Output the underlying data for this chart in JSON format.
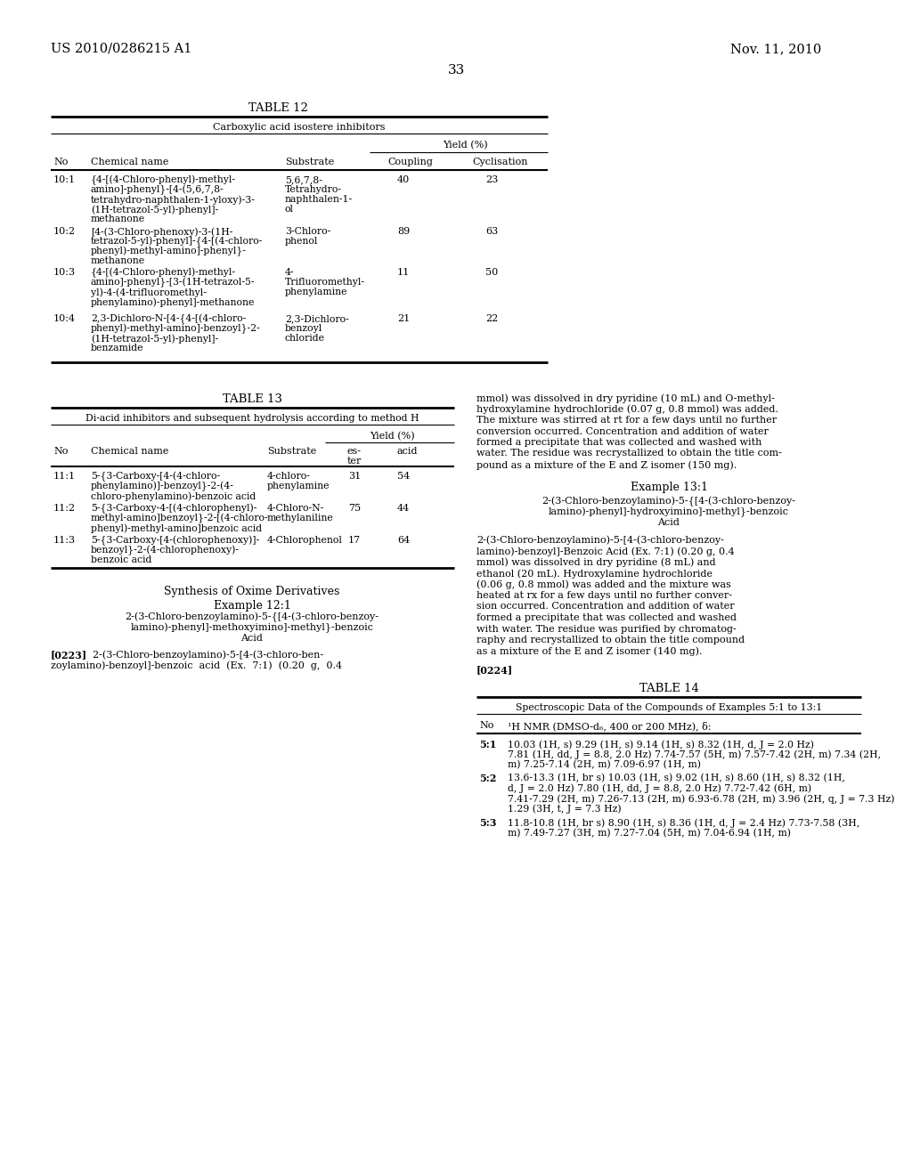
{
  "page_number": "33",
  "patent_left": "US 2010/0286215 A1",
  "patent_right": "Nov. 11, 2010",
  "bg_color": "#ffffff",
  "table12": {
    "title": "TABLE 12",
    "subtitle": "Carboxylic acid isostere inhibitors",
    "yield_header": "Yield (%)",
    "rows": [
      {
        "no": "10:1",
        "name": "{4-[(4-Chloro-phenyl)-methyl-\namino]-phenyl}-[4-(5,6,7,8-\ntetrahydro-naphthalen-1-yloxy)-3-\n(1H-tetrazol-5-yl)-phenyl]-\nmethanone",
        "substrate": "5,6,7,8-\nTetrahydro-\nnaphthalen-1-\nol",
        "coupling": "40",
        "cyclisation": "23"
      },
      {
        "no": "10:2",
        "name": "[4-(3-Chloro-phenoxy)-3-(1H-\ntetrazol-5-yl)-phenyl]-{4-[(4-chloro-\nphenyl)-methyl-amino]-phenyl}-\nmethanone",
        "substrate": "3-Chloro-\nphenol",
        "coupling": "89",
        "cyclisation": "63"
      },
      {
        "no": "10:3",
        "name": "{4-[(4-Chloro-phenyl)-methyl-\namino]-phenyl}-[3-(1H-tetrazol-5-\nyl)-4-(4-trifluoromethyl-\nphenylamino)-phenyl]-methanone",
        "substrate": "4-\nTrifluoromethyl-\nphenylamine",
        "coupling": "11",
        "cyclisation": "50"
      },
      {
        "no": "10:4",
        "name": "2,3-Dichloro-N-[4-{4-[(4-chloro-\nphenyl)-methyl-amino]-benzoyl}-2-\n(1H-tetrazol-5-yl)-phenyl]-\nbenzamide",
        "substrate": "2,3-Dichloro-\nbenzoyl\nchloride",
        "coupling": "21",
        "cyclisation": "22"
      }
    ]
  },
  "table13": {
    "title": "TABLE 13",
    "subtitle": "Di-acid inhibitors and subsequent hydrolysis according to method H",
    "yield_header": "Yield (%)",
    "rows": [
      {
        "no": "11:1",
        "name": "5-{3-Carboxy-[4-(4-chloro-\nphenylamino)]-benzoyl}-2-(4-\nchloro-phenylamino)-benzoic acid",
        "substrate": "4-chloro-\nphenylamine",
        "ester": "31",
        "acid": "54"
      },
      {
        "no": "11:2",
        "name": "5-{3-Carboxy-4-[(4-chlorophenyl)-\nmethyl-amino]benzoyl}-2-[(4-chloro-\nphenyl)-methyl-amino]benzoic acid",
        "substrate": "4-Chloro-N-\nmethylaniline",
        "ester": "75",
        "acid": "44"
      },
      {
        "no": "11:3",
        "name": "5-{3-Carboxy-[4-(chlorophenoxy)]-\nbenzoyl}-2-(4-chlorophenoxy)-\nbenzoic acid",
        "substrate": "4-Chlorophenol",
        "ester": "17",
        "acid": "64"
      }
    ]
  },
  "synthesis_title": "Synthesis of Oxime Derivatives",
  "example_121_title": "Example 12:1",
  "example_121_compound_lines": [
    "2-(3-Chloro-benzoylamino)-5-{[4-(3-chloro-benzoy-",
    "lamino)-phenyl]-methoxyimino]-methyl}-benzoic",
    "Acid"
  ],
  "para_0223_bold": "[0223]",
  "para_0223_text_line1": "  2-(3-Chloro-benzoylamino)-5-[4-(3-chloro-ben-",
  "para_0223_text_line2": "zoylamino)-benzoyl]-benzoic  acid  (Ex.  7:1)  (0.20  g,  0.4",
  "right_text_ex121": [
    "mmol) was dissolved in dry pyridine (10 mL) and O-methyl-",
    "hydroxylamine hydrochloride (0.07 g, 0.8 mmol) was added.",
    "The mixture was stirred at rt for a few days until no further",
    "conversion occurred. Concentration and addition of water",
    "formed a precipitate that was collected and washed with",
    "water. The residue was recrystallized to obtain the title com-",
    "pound as a mixture of the E and Z isomer (150 mg)."
  ],
  "example_131_title": "Example 13:1",
  "example_131_compound_lines": [
    "2-(3-Chloro-benzoylamino)-5-{[4-(3-chloro-benzoy-",
    "lamino)-phenyl]-hydroxyimino]-methyl}-benzoic",
    "Acid"
  ],
  "right_text_ex131": [
    "2-(3-Chloro-benzoylamino)-5-[4-(3-chloro-benzoy-",
    "lamino)-benzoyl]-Benzoic Acid (Ex. 7:1) (0.20 g, 0.4",
    "mmol) was dissolved in dry pyridine (8 mL) and",
    "ethanol (20 mL). Hydroxylamine hydrochloride",
    "(0.06 g, 0.8 mmol) was added and the mixture was",
    "heated at rx for a few days until no further conver-",
    "sion occurred. Concentration and addition of water",
    "formed a precipitate that was collected and washed",
    "with water. The residue was purified by chromatog-",
    "raphy and recrystallized to obtain the title compound",
    "as a mixture of the E and Z isomer (140 mg)."
  ],
  "para_0224": "[0224]",
  "table14": {
    "title": "TABLE 14",
    "subtitle": "Spectroscopic Data of the Compounds of Examples 5:1 to 13:1",
    "col_header_no": "No",
    "col_header_nmr": "¹H NMR (DMSO-d₆, 400 or 200 MHz), δ:",
    "rows": [
      {
        "no": "5:1",
        "data_lines": [
          "10.03 (1H, s) 9.29 (1H, s) 9.14 (1H, s) 8.32 (1H, d, J = 2.0 Hz)",
          "7.81 (1H, dd, J = 8.8, 2.0 Hz) 7.74-7.57 (5H, m) 7.57-7.42 (2H, m) 7.34 (2H,",
          "m) 7.25-7.14 (2H, m) 7.09-6.97 (1H, m)"
        ]
      },
      {
        "no": "5:2",
        "data_lines": [
          "13.6-13.3 (1H, br s) 10.03 (1H, s) 9.02 (1H, s) 8.60 (1H, s) 8.32 (1H,",
          "d, J = 2.0 Hz) 7.80 (1H, dd, J = 8.8, 2.0 Hz) 7.72-7.42 (6H, m)",
          "7.41-7.29 (2H, m) 7.26-7.13 (2H, m) 6.93-6.78 (2H, m) 3.96 (2H, q, J = 7.3 Hz)",
          "1.29 (3H, t, J = 7.3 Hz)"
        ]
      },
      {
        "no": "5:3",
        "data_lines": [
          "11.8-10.8 (1H, br s) 8.90 (1H, s) 8.36 (1H, d, J = 2.4 Hz) 7.73-7.58 (3H,",
          "m) 7.49-7.27 (3H, m) 7.27-7.04 (5H, m) 7.04-6.94 (1H, m)"
        ]
      }
    ]
  }
}
